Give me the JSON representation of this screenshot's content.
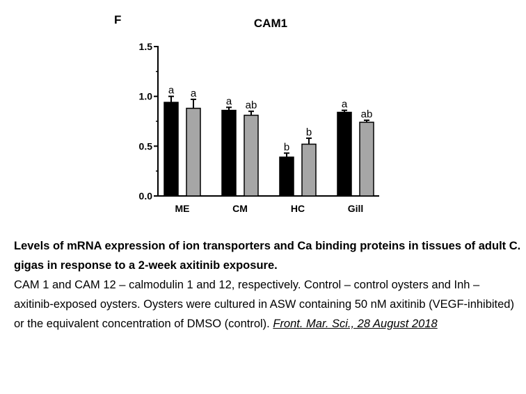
{
  "panel_label": "F",
  "chart_data": {
    "type": "bar",
    "title": "CAM1",
    "xlabel": "",
    "ylabel": "",
    "categories": [
      "ME",
      "CM",
      "HC",
      "Gill"
    ],
    "ylim": [
      0.0,
      1.5
    ],
    "yticks": [
      "0.0",
      "0.5",
      "1.0",
      "1.5"
    ],
    "grid": false,
    "legend": "none",
    "series": [
      {
        "color": "#000000",
        "values": [
          0.94,
          0.86,
          0.39,
          0.84
        ],
        "errors": [
          0.06,
          0.03,
          0.04,
          0.02
        ],
        "labels": [
          "a",
          "a",
          "b",
          "a"
        ]
      },
      {
        "color": "#a6a6a6",
        "values": [
          0.88,
          0.81,
          0.52,
          0.74
        ],
        "errors": [
          0.09,
          0.04,
          0.06,
          0.02
        ],
        "labels": [
          "a",
          "ab",
          "b",
          "ab"
        ]
      }
    ]
  },
  "caption": {
    "title": "Levels of mRNA expression of ion transporters and Ca binding proteins in tissues of adult C. gigas in response to a 2-week axitinib exposure.",
    "body": "CAM 1 and CAM 12 – calmodulin 1 and 12, respectively. Control – control oysters and Inh – axitinib-exposed oysters. Oysters were cultured in ASW containing 50 nM axitinib (VEGF-inhibited) or the equivalent concentration of DMSO (control). ",
    "source": "Front. Mar. Sci., 28 August 2018"
  }
}
